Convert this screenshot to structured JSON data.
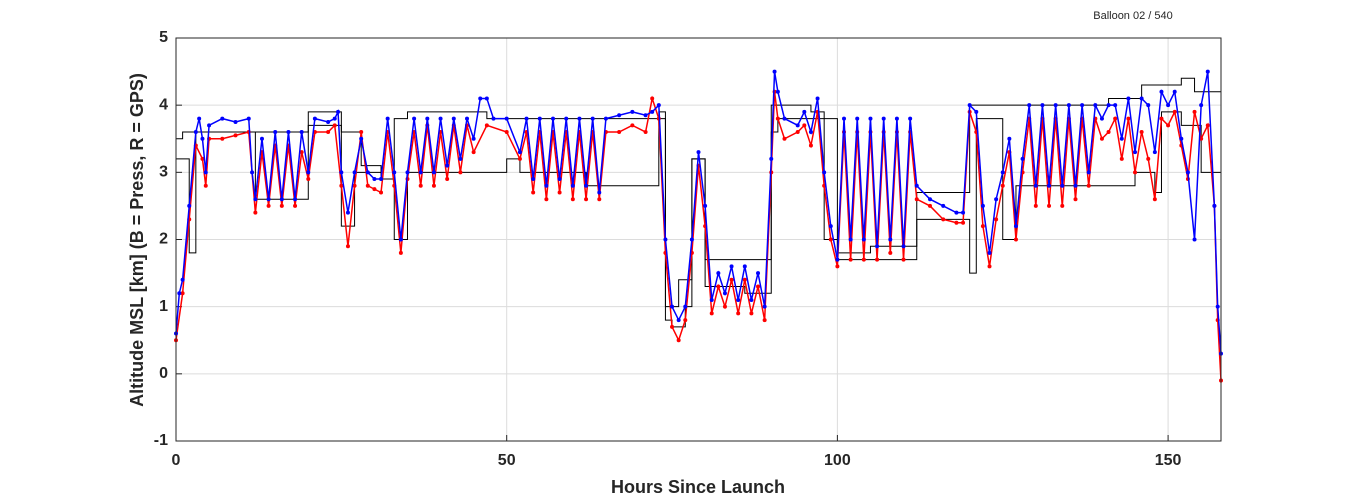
{
  "chart_data": {
    "type": "line",
    "title": "Balloon 02 / 540",
    "x_label": "Hours Since Launch",
    "y_label": "Altitude MSL [km]   (B = Press, R = GPS)",
    "xlim": [
      0,
      158
    ],
    "xticks": [
      0,
      50,
      100,
      150
    ],
    "ylim": [
      -1,
      5
    ],
    "yticks": [
      -1,
      0,
      1,
      2,
      3,
      4,
      5
    ],
    "grid": true,
    "series": [
      {
        "color": "#000000",
        "step": "post",
        "marker": false,
        "x": [
          0,
          1,
          3,
          12,
          20,
          25,
          28,
          31,
          33,
          35,
          47,
          52,
          73,
          74,
          76,
          78,
          80,
          81,
          90,
          92,
          96,
          98,
          100,
          112,
          120,
          121,
          127,
          134,
          138,
          141,
          146,
          148,
          152,
          154,
          158
        ],
        "values": [
          3.5,
          3.6,
          3.6,
          3.6,
          3.9,
          3.6,
          3.1,
          2.9,
          3.8,
          3.9,
          3.8,
          3.8,
          3.9,
          1.0,
          1.4,
          3.2,
          1.7,
          1.7,
          4.0,
          4.0,
          3.9,
          3.8,
          1.7,
          2.7,
          4.0,
          4.0,
          4.0,
          4.0,
          4.0,
          4.1,
          4.3,
          4.3,
          4.4,
          4.2,
          4.2
        ]
      },
      {
        "color": "#000000",
        "step": "post",
        "marker": false,
        "x": [
          0,
          2,
          3,
          12,
          20,
          25,
          27,
          31,
          33,
          35,
          38,
          50,
          52,
          62,
          73,
          74,
          75,
          77,
          78,
          80,
          82,
          86,
          90,
          91,
          95,
          98,
          100,
          105,
          112,
          120,
          121,
          125,
          127,
          135,
          145,
          148,
          149,
          152,
          155,
          158
        ],
        "values": [
          3.2,
          1.8,
          3.6,
          2.6,
          3.7,
          2.2,
          3.0,
          2.9,
          2.0,
          3.0,
          3.0,
          3.2,
          3.0,
          2.8,
          3.8,
          0.8,
          0.7,
          1.0,
          3.2,
          1.3,
          1.3,
          1.2,
          3.6,
          3.8,
          3.8,
          2.0,
          1.8,
          1.9,
          2.3,
          1.5,
          3.8,
          2.0,
          2.8,
          2.8,
          3.0,
          2.7,
          3.9,
          3.7,
          3.0,
          1.9
        ]
      },
      {
        "color": "#ff0000",
        "marker": true,
        "x": [
          0,
          1,
          2,
          3,
          4,
          4.5,
          5,
          7,
          9,
          11,
          12,
          13,
          14,
          15,
          16,
          17,
          18,
          19,
          20,
          21,
          23,
          24,
          25,
          26,
          27,
          28,
          29,
          30,
          31,
          32,
          33,
          34,
          35,
          36,
          37,
          38,
          39,
          40,
          41,
          42,
          43,
          44,
          45,
          47,
          50,
          52,
          53,
          54,
          55,
          56,
          57,
          58,
          59,
          60,
          61,
          62,
          63,
          64,
          65,
          67,
          69,
          71,
          72,
          73,
          74,
          75,
          76,
          77,
          78,
          79,
          80,
          81,
          82,
          83,
          84,
          85,
          86,
          87,
          88,
          89,
          90,
          90.5,
          91,
          92,
          94,
          95,
          96,
          97,
          98,
          99,
          100,
          101,
          102,
          103,
          104,
          105,
          106,
          107,
          108,
          109,
          110,
          111,
          112,
          114,
          116,
          118,
          119,
          120,
          121,
          122,
          123,
          124,
          125,
          126,
          127,
          128,
          129,
          130,
          131,
          132,
          133,
          134,
          135,
          136,
          137,
          138,
          139,
          140,
          141,
          142,
          143,
          144,
          145,
          146,
          147,
          148,
          149,
          150,
          151,
          152,
          153,
          154,
          155,
          156,
          157,
          157.5,
          158
        ],
        "values": [
          0.5,
          1.2,
          2.3,
          3.4,
          3.2,
          2.8,
          3.5,
          3.5,
          3.55,
          3.6,
          2.4,
          3.3,
          2.5,
          3.4,
          2.5,
          3.4,
          2.5,
          3.3,
          2.9,
          3.6,
          3.6,
          3.7,
          2.8,
          1.9,
          2.8,
          3.6,
          2.8,
          2.75,
          2.7,
          3.6,
          2.8,
          1.8,
          2.9,
          3.6,
          2.8,
          3.7,
          2.8,
          3.6,
          2.9,
          3.7,
          3.0,
          3.7,
          3.3,
          3.7,
          3.6,
          3.2,
          3.6,
          2.7,
          3.6,
          2.6,
          3.6,
          2.7,
          3.6,
          2.6,
          3.6,
          2.6,
          3.6,
          2.6,
          3.6,
          3.6,
          3.7,
          3.6,
          4.1,
          3.8,
          1.8,
          0.7,
          0.5,
          0.8,
          1.8,
          3.1,
          2.2,
          0.9,
          1.3,
          1.0,
          1.4,
          0.9,
          1.4,
          0.9,
          1.3,
          0.8,
          3.0,
          4.2,
          3.8,
          3.5,
          3.6,
          3.7,
          3.4,
          3.9,
          2.8,
          2.0,
          1.6,
          3.6,
          1.7,
          3.6,
          1.7,
          3.6,
          1.7,
          3.6,
          1.8,
          3.6,
          1.7,
          3.6,
          2.6,
          2.5,
          2.3,
          2.25,
          2.25,
          3.9,
          3.6,
          2.2,
          1.6,
          2.3,
          2.8,
          3.3,
          2.0,
          3.0,
          3.8,
          2.5,
          3.8,
          2.5,
          3.8,
          2.5,
          3.8,
          2.6,
          3.8,
          2.8,
          3.8,
          3.5,
          3.6,
          3.8,
          3.2,
          3.8,
          3.0,
          3.6,
          3.2,
          2.6,
          3.8,
          3.7,
          3.9,
          3.4,
          2.9,
          3.9,
          3.5,
          3.7,
          2.5,
          0.8,
          -0.1
        ]
      },
      {
        "color": "#0000ff",
        "marker": true,
        "x": [
          0,
          0.5,
          1,
          2,
          3,
          3.5,
          4,
          4.5,
          5,
          7,
          9,
          11,
          11.5,
          12,
          13,
          14,
          15,
          16,
          17,
          18,
          19,
          20,
          21,
          23,
          24,
          24.5,
          25,
          26,
          27,
          28,
          29,
          30,
          31,
          32,
          33,
          34,
          35,
          36,
          37,
          38,
          39,
          40,
          41,
          42,
          43,
          44,
          45,
          46,
          47,
          48,
          50,
          52,
          53,
          54,
          55,
          56,
          57,
          58,
          59,
          60,
          61,
          62,
          63,
          64,
          65,
          67,
          69,
          71,
          72,
          73,
          74,
          75,
          76,
          77,
          78,
          79,
          80,
          81,
          82,
          83,
          84,
          85,
          86,
          87,
          88,
          89,
          90,
          90.5,
          91,
          92,
          94,
          95,
          96,
          97,
          98,
          99,
          100,
          101,
          102,
          103,
          104,
          105,
          106,
          107,
          108,
          109,
          110,
          111,
          112,
          114,
          116,
          118,
          119,
          120,
          121,
          122,
          123,
          124,
          125,
          126,
          127,
          128,
          129,
          130,
          131,
          132,
          133,
          134,
          135,
          136,
          137,
          138,
          139,
          140,
          141,
          142,
          143,
          144,
          145,
          146,
          147,
          148,
          149,
          150,
          151,
          152,
          153,
          154,
          155,
          156,
          157,
          157.5,
          158
        ],
        "values": [
          0.6,
          1.2,
          1.4,
          2.5,
          3.6,
          3.8,
          3.5,
          3.0,
          3.7,
          3.8,
          3.75,
          3.8,
          3.0,
          2.6,
          3.5,
          2.6,
          3.6,
          2.6,
          3.6,
          2.6,
          3.6,
          3.0,
          3.8,
          3.75,
          3.8,
          3.9,
          3.0,
          2.4,
          3.0,
          3.5,
          3.0,
          2.9,
          2.9,
          3.8,
          3.0,
          2.0,
          3.0,
          3.8,
          3.0,
          3.8,
          3.0,
          3.8,
          3.1,
          3.8,
          3.2,
          3.8,
          3.5,
          4.1,
          4.1,
          3.8,
          3.8,
          3.3,
          3.8,
          2.9,
          3.8,
          2.8,
          3.8,
          2.9,
          3.8,
          2.8,
          3.8,
          2.8,
          3.8,
          2.7,
          3.8,
          3.85,
          3.9,
          3.85,
          3.9,
          4.0,
          2.0,
          1.0,
          0.8,
          1.0,
          2.0,
          3.3,
          2.5,
          1.1,
          1.5,
          1.2,
          1.6,
          1.1,
          1.6,
          1.1,
          1.5,
          1.0,
          3.2,
          4.5,
          4.2,
          3.8,
          3.7,
          3.9,
          3.6,
          4.1,
          3.0,
          2.2,
          1.7,
          3.8,
          2.0,
          3.8,
          2.0,
          3.8,
          1.9,
          3.8,
          2.0,
          3.8,
          1.9,
          3.8,
          2.8,
          2.6,
          2.5,
          2.4,
          2.4,
          4.0,
          3.9,
          2.5,
          1.8,
          2.6,
          3.0,
          3.5,
          2.2,
          3.2,
          4.0,
          2.8,
          4.0,
          2.8,
          4.0,
          2.8,
          4.0,
          2.8,
          4.0,
          3.0,
          4.0,
          3.8,
          4.0,
          4.0,
          3.5,
          4.1,
          3.3,
          4.1,
          4.0,
          3.3,
          4.2,
          4.0,
          4.2,
          3.5,
          3.0,
          2.0,
          4.0,
          4.5,
          2.5,
          1.0,
          0.3
        ]
      }
    ]
  }
}
